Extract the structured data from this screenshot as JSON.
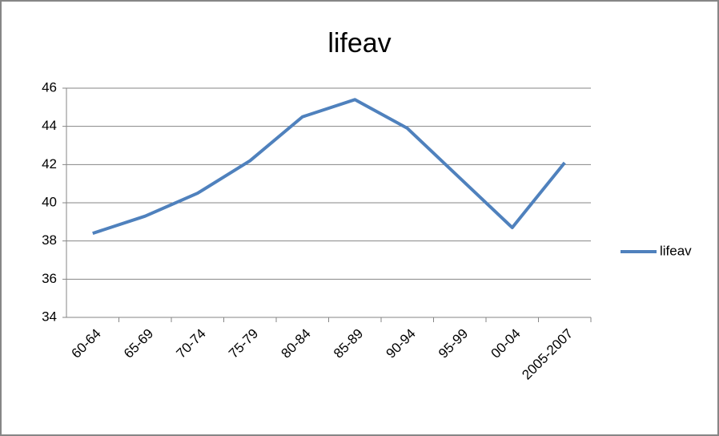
{
  "chart_data": {
    "type": "line",
    "title": "lifeav",
    "categories": [
      "60-64",
      "65-69",
      "70-74",
      "75-79",
      "80-84",
      "85-89",
      "90-94",
      "95-99",
      "00-04",
      "2005-2007"
    ],
    "series": [
      {
        "name": "lifeav",
        "color": "#4f81bd",
        "values": [
          38.4,
          39.3,
          40.5,
          42.2,
          44.5,
          45.4,
          43.9,
          41.3,
          38.7,
          42.1
        ]
      }
    ],
    "ylim": [
      34,
      46
    ],
    "yticks": [
      34,
      36,
      38,
      40,
      42,
      44,
      46
    ],
    "grid": true,
    "legend": "right"
  }
}
